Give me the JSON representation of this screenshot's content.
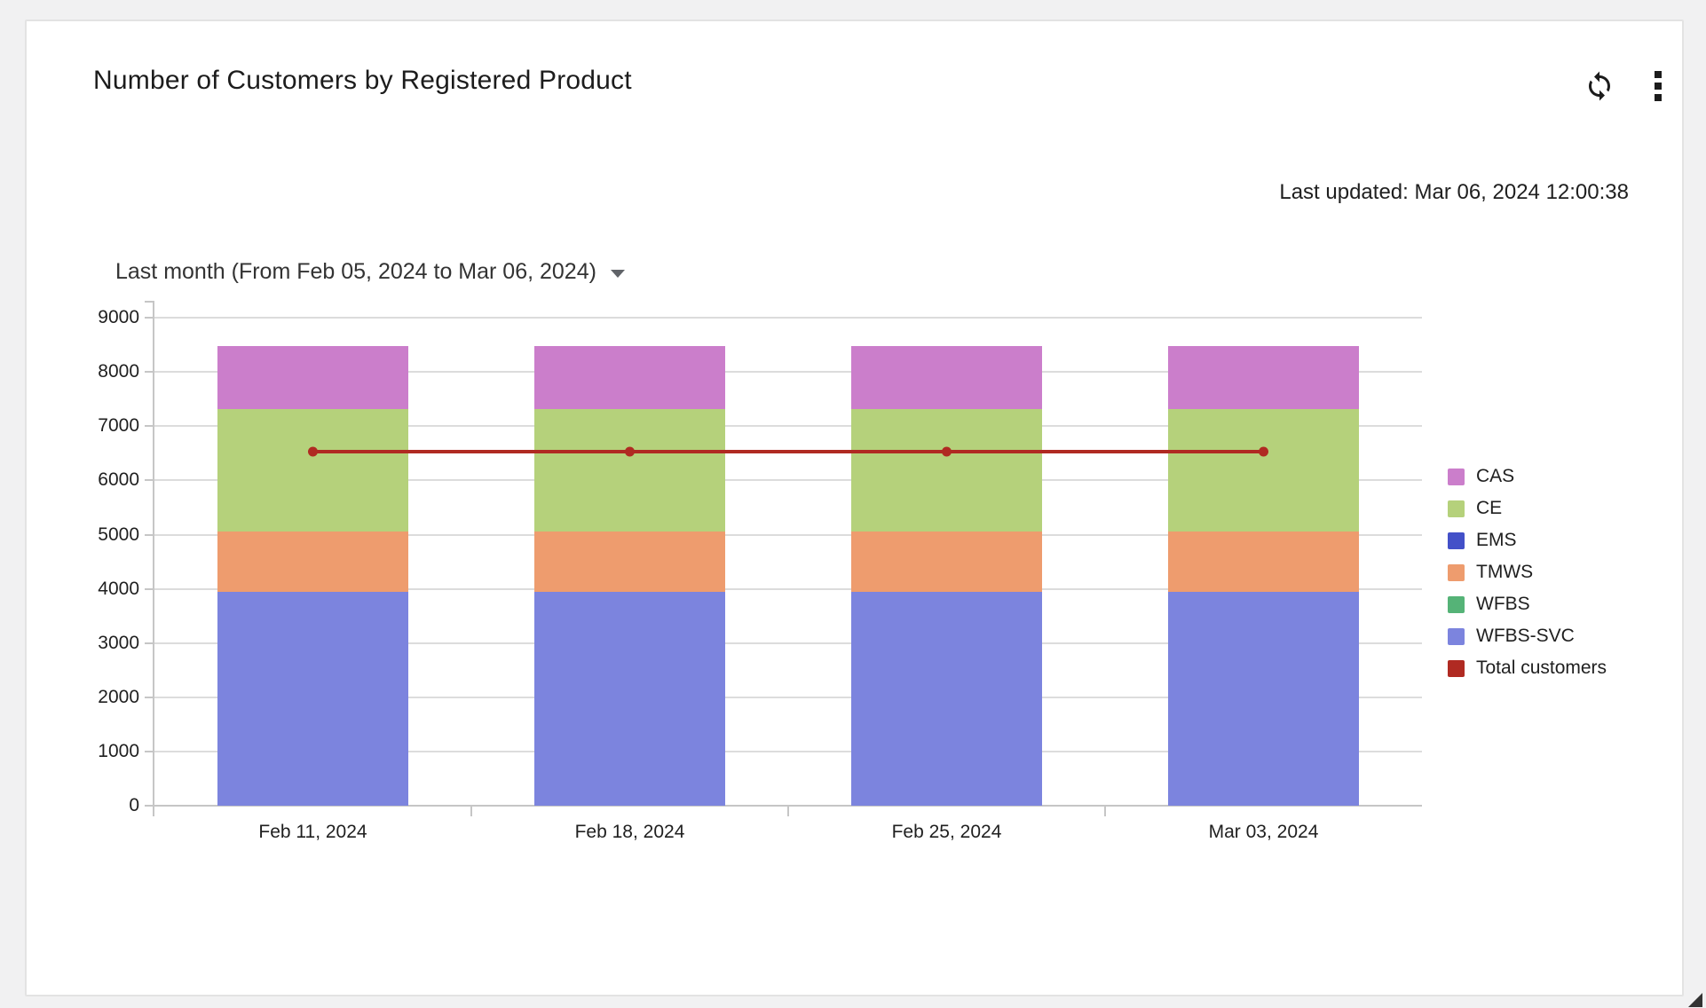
{
  "widget": {
    "title": "Number of Customers by Registered Product",
    "last_updated": "Last updated: Mar 06, 2024 12:00:38",
    "time_range_label": "Last month (From Feb 05, 2024 to Mar 06, 2024)"
  },
  "chart_data": {
    "type": "bar",
    "stacked": true,
    "title": "Number of Customers by Registered Product",
    "categories": [
      "Feb 11, 2024",
      "Feb 18, 2024",
      "Feb 25, 2024",
      "Mar 03, 2024"
    ],
    "series": [
      {
        "name": "CAS",
        "type": "bar",
        "color": "#cb7ecb",
        "values": [
          1150,
          1150,
          1150,
          1150
        ]
      },
      {
        "name": "CE",
        "type": "bar",
        "color": "#b5d17b",
        "values": [
          2270,
          2270,
          2270,
          2270
        ]
      },
      {
        "name": "EMS",
        "type": "bar",
        "color": "#4350c8",
        "values": [
          0,
          0,
          0,
          0
        ]
      },
      {
        "name": "TMWS",
        "type": "bar",
        "color": "#ee9c6e",
        "values": [
          1100,
          1100,
          1100,
          1100
        ]
      },
      {
        "name": "WFBS",
        "type": "bar",
        "color": "#55b377",
        "values": [
          0,
          0,
          0,
          0
        ]
      },
      {
        "name": "WFBS-SVC",
        "type": "bar",
        "color": "#7c84de",
        "values": [
          3950,
          3950,
          3950,
          3950
        ]
      },
      {
        "name": "Total customers",
        "type": "line",
        "color": "#b02a22",
        "values": [
          6530,
          6530,
          6530,
          6530
        ]
      }
    ],
    "stack_order_bottom_to_top": [
      "WFBS-SVC",
      "WFBS",
      "TMWS",
      "EMS",
      "CE",
      "CAS"
    ],
    "ylim": [
      0,
      9000
    ],
    "yticks": [
      0,
      1000,
      2000,
      3000,
      4000,
      5000,
      6000,
      7000,
      8000,
      9000
    ],
    "grid": true,
    "legend_position": "right"
  }
}
